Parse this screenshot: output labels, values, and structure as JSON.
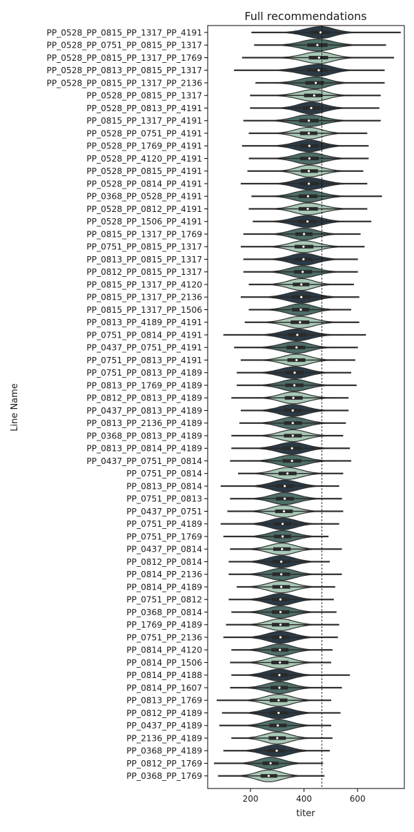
{
  "chart_data": {
    "type": "violin",
    "title": "Full recommendations",
    "xlabel": "titer",
    "ylabel": "Line Name",
    "xlim": [
      40,
      775
    ],
    "xticks": [
      200,
      400,
      600
    ],
    "reference_line": 467,
    "colors": [
      "#2b3a45",
      "#4e6e69",
      "#a8c8b6"
    ],
    "rows": [
      {
        "name": "PP_0528_PP_0815_PP_1317_PP_4191",
        "median": 462,
        "q1": 425,
        "q3": 495,
        "wmin": 330,
        "wmax": 600,
        "min": 205,
        "max": 760
      },
      {
        "name": "PP_0528_PP_0751_PP_0815_PP_1317",
        "median": 450,
        "q1": 412,
        "q3": 488,
        "wmin": 325,
        "wmax": 590,
        "min": 215,
        "max": 705
      },
      {
        "name": "PP_0528_PP_0815_PP_1317_PP_1769",
        "median": 456,
        "q1": 418,
        "q3": 490,
        "wmin": 285,
        "wmax": 630,
        "min": 170,
        "max": 735
      },
      {
        "name": "PP_0528_PP_0813_PP_0815_PP_1317",
        "median": 455,
        "q1": 412,
        "q3": 488,
        "wmin": 300,
        "wmax": 600,
        "min": 140,
        "max": 700
      },
      {
        "name": "PP_0528_PP_0815_PP_1317_PP_2136",
        "median": 444,
        "q1": 405,
        "q3": 475,
        "wmin": 285,
        "wmax": 595,
        "min": 220,
        "max": 700
      },
      {
        "name": "PP_0528_PP_0815_PP_1317",
        "median": 438,
        "q1": 400,
        "q3": 470,
        "wmin": 300,
        "wmax": 580,
        "min": 200,
        "max": 685
      },
      {
        "name": "PP_0528_PP_0813_PP_4191",
        "median": 427,
        "q1": 395,
        "q3": 460,
        "wmin": 300,
        "wmax": 560,
        "min": 200,
        "max": 680
      },
      {
        "name": "PP_0815_PP_1317_PP_4191",
        "median": 418,
        "q1": 382,
        "q3": 455,
        "wmin": 255,
        "wmax": 565,
        "min": 175,
        "max": 685
      },
      {
        "name": "PP_0528_PP_0751_PP_4191",
        "median": 418,
        "q1": 385,
        "q3": 450,
        "wmin": 290,
        "wmax": 545,
        "min": 195,
        "max": 635
      },
      {
        "name": "PP_0528_PP_1769_PP_4191",
        "median": 420,
        "q1": 385,
        "q3": 452,
        "wmin": 265,
        "wmax": 560,
        "min": 170,
        "max": 640
      },
      {
        "name": "PP_0528_PP_4120_PP_4191",
        "median": 420,
        "q1": 385,
        "q3": 455,
        "wmin": 285,
        "wmax": 565,
        "min": 195,
        "max": 640
      },
      {
        "name": "PP_0528_PP_0815_PP_4191",
        "median": 418,
        "q1": 388,
        "q3": 452,
        "wmin": 295,
        "wmax": 550,
        "min": 190,
        "max": 620
      },
      {
        "name": "PP_0528_PP_0814_PP_4191",
        "median": 418,
        "q1": 385,
        "q3": 455,
        "wmin": 240,
        "wmax": 560,
        "min": 165,
        "max": 635
      },
      {
        "name": "PP_0368_PP_0528_PP_4191",
        "median": 415,
        "q1": 380,
        "q3": 450,
        "wmin": 280,
        "wmax": 555,
        "min": 205,
        "max": 690
      },
      {
        "name": "PP_0528_PP_0812_PP_4191",
        "median": 414,
        "q1": 380,
        "q3": 452,
        "wmin": 260,
        "wmax": 555,
        "min": 195,
        "max": 635
      },
      {
        "name": "PP_0528_PP_1506_PP_4191",
        "median": 413,
        "q1": 378,
        "q3": 448,
        "wmin": 270,
        "wmax": 560,
        "min": 210,
        "max": 650
      },
      {
        "name": "PP_0815_PP_1317_PP_1769",
        "median": 400,
        "q1": 368,
        "q3": 432,
        "wmin": 255,
        "wmax": 540,
        "min": 175,
        "max": 610
      },
      {
        "name": "PP_0751_PP_0815_PP_1317",
        "median": 398,
        "q1": 365,
        "q3": 435,
        "wmin": 245,
        "wmax": 560,
        "min": 165,
        "max": 625
      },
      {
        "name": "PP_0813_PP_0815_PP_1317",
        "median": 398,
        "q1": 365,
        "q3": 432,
        "wmin": 255,
        "wmax": 545,
        "min": 175,
        "max": 600
      },
      {
        "name": "PP_0812_PP_0815_PP_1317",
        "median": 395,
        "q1": 362,
        "q3": 430,
        "wmin": 265,
        "wmax": 540,
        "min": 175,
        "max": 600
      },
      {
        "name": "PP_0815_PP_1317_PP_4120",
        "median": 390,
        "q1": 358,
        "q3": 420,
        "wmin": 265,
        "wmax": 520,
        "min": 195,
        "max": 585
      },
      {
        "name": "PP_0815_PP_1317_PP_2136",
        "median": 390,
        "q1": 355,
        "q3": 425,
        "wmin": 250,
        "wmax": 530,
        "min": 165,
        "max": 605
      },
      {
        "name": "PP_0815_PP_1317_PP_1506",
        "median": 388,
        "q1": 355,
        "q3": 420,
        "wmin": 250,
        "wmax": 520,
        "min": 195,
        "max": 575
      },
      {
        "name": "PP_0813_PP_4189_PP_4191",
        "median": 385,
        "q1": 350,
        "q3": 420,
        "wmin": 250,
        "wmax": 525,
        "min": 180,
        "max": 605
      },
      {
        "name": "PP_0751_PP_0814_PP_4191",
        "median": 375,
        "q1": 340,
        "q3": 410,
        "wmin": 205,
        "wmax": 550,
        "min": 100,
        "max": 630
      },
      {
        "name": "PP_0437_PP_0751_PP_4191",
        "median": 372,
        "q1": 335,
        "q3": 405,
        "wmin": 220,
        "wmax": 520,
        "min": 140,
        "max": 600
      },
      {
        "name": "PP_0751_PP_0813_PP_4191",
        "median": 372,
        "q1": 338,
        "q3": 405,
        "wmin": 240,
        "wmax": 520,
        "min": 165,
        "max": 590
      },
      {
        "name": "PP_0751_PP_0813_PP_4189",
        "median": 365,
        "q1": 330,
        "q3": 398,
        "wmin": 230,
        "wmax": 505,
        "min": 150,
        "max": 575
      },
      {
        "name": "PP_0813_PP_1769_PP_4189",
        "median": 364,
        "q1": 330,
        "q3": 398,
        "wmin": 225,
        "wmax": 510,
        "min": 150,
        "max": 595
      },
      {
        "name": "PP_0812_PP_0813_PP_4189",
        "median": 360,
        "q1": 328,
        "q3": 395,
        "wmin": 215,
        "wmax": 520,
        "min": 130,
        "max": 565
      },
      {
        "name": "PP_0437_PP_0813_PP_4189",
        "median": 358,
        "q1": 325,
        "q3": 392,
        "wmin": 230,
        "wmax": 505,
        "min": 165,
        "max": 565
      },
      {
        "name": "PP_0813_PP_2136_PP_4189",
        "median": 358,
        "q1": 325,
        "q3": 392,
        "wmin": 225,
        "wmax": 500,
        "min": 160,
        "max": 555
      },
      {
        "name": "PP_0368_PP_0813_PP_4189",
        "median": 358,
        "q1": 325,
        "q3": 392,
        "wmin": 215,
        "wmax": 490,
        "min": 130,
        "max": 545
      },
      {
        "name": "PP_0813_PP_0814_PP_4189",
        "median": 355,
        "q1": 320,
        "q3": 390,
        "wmin": 215,
        "wmax": 510,
        "min": 130,
        "max": 570
      },
      {
        "name": "PP_0437_PP_0751_PP_0814",
        "median": 355,
        "q1": 320,
        "q3": 390,
        "wmin": 200,
        "wmax": 505,
        "min": 125,
        "max": 575
      },
      {
        "name": "PP_0751_PP_0814",
        "median": 338,
        "q1": 305,
        "q3": 372,
        "wmin": 205,
        "wmax": 480,
        "min": 155,
        "max": 545
      },
      {
        "name": "PP_0813_PP_0814",
        "median": 328,
        "q1": 295,
        "q3": 362,
        "wmin": 185,
        "wmax": 470,
        "min": 90,
        "max": 530
      },
      {
        "name": "PP_0751_PP_0813",
        "median": 328,
        "q1": 295,
        "q3": 362,
        "wmin": 195,
        "wmax": 470,
        "min": 125,
        "max": 540
      },
      {
        "name": "PP_0437_PP_0751",
        "median": 325,
        "q1": 292,
        "q3": 358,
        "wmin": 185,
        "wmax": 470,
        "min": 115,
        "max": 545
      },
      {
        "name": "PP_0751_PP_4189",
        "median": 320,
        "q1": 288,
        "q3": 352,
        "wmin": 180,
        "wmax": 465,
        "min": 90,
        "max": 530
      },
      {
        "name": "PP_0751_PP_1769",
        "median": 320,
        "q1": 288,
        "q3": 352,
        "wmin": 185,
        "wmax": 455,
        "min": 100,
        "max": 490
      },
      {
        "name": "PP_0437_PP_0814",
        "median": 318,
        "q1": 285,
        "q3": 350,
        "wmin": 185,
        "wmax": 460,
        "min": 125,
        "max": 540
      },
      {
        "name": "PP_0812_PP_0814",
        "median": 315,
        "q1": 282,
        "q3": 348,
        "wmin": 185,
        "wmax": 455,
        "min": 120,
        "max": 495
      },
      {
        "name": "PP_0814_PP_2136",
        "median": 315,
        "q1": 282,
        "q3": 348,
        "wmin": 185,
        "wmax": 455,
        "min": 120,
        "max": 540
      },
      {
        "name": "PP_0814_PP_4189",
        "median": 315,
        "q1": 282,
        "q3": 348,
        "wmin": 190,
        "wmax": 455,
        "min": 150,
        "max": 515
      },
      {
        "name": "PP_0751_PP_0812",
        "median": 312,
        "q1": 280,
        "q3": 345,
        "wmin": 180,
        "wmax": 450,
        "min": 120,
        "max": 510
      },
      {
        "name": "PP_0368_PP_0814",
        "median": 312,
        "q1": 280,
        "q3": 345,
        "wmin": 185,
        "wmax": 450,
        "min": 130,
        "max": 520
      },
      {
        "name": "PP_1769_PP_4189",
        "median": 312,
        "q1": 280,
        "q3": 345,
        "wmin": 175,
        "wmax": 450,
        "min": 110,
        "max": 530
      },
      {
        "name": "PP_0751_PP_2136",
        "median": 312,
        "q1": 280,
        "q3": 345,
        "wmin": 175,
        "wmax": 450,
        "min": 100,
        "max": 525
      },
      {
        "name": "PP_0814_PP_4120",
        "median": 310,
        "q1": 278,
        "q3": 342,
        "wmin": 180,
        "wmax": 445,
        "min": 130,
        "max": 505
      },
      {
        "name": "PP_0814_PP_1506",
        "median": 310,
        "q1": 278,
        "q3": 342,
        "wmin": 180,
        "wmax": 445,
        "min": 125,
        "max": 500
      },
      {
        "name": "PP_0814_PP_4188",
        "median": 308,
        "q1": 275,
        "q3": 340,
        "wmin": 175,
        "wmax": 445,
        "min": 130,
        "max": 570
      },
      {
        "name": "PP_0814_PP_1607",
        "median": 308,
        "q1": 275,
        "q3": 340,
        "wmin": 175,
        "wmax": 445,
        "min": 125,
        "max": 540
      },
      {
        "name": "PP_0813_PP_1769",
        "median": 305,
        "q1": 272,
        "q3": 338,
        "wmin": 170,
        "wmax": 440,
        "min": 75,
        "max": 500
      },
      {
        "name": "PP_0812_PP_4189",
        "median": 305,
        "q1": 272,
        "q3": 338,
        "wmin": 170,
        "wmax": 440,
        "min": 95,
        "max": 535
      },
      {
        "name": "PP_0437_PP_4189",
        "median": 302,
        "q1": 270,
        "q3": 335,
        "wmin": 170,
        "wmax": 435,
        "min": 85,
        "max": 500
      },
      {
        "name": "PP_2136_PP_4189",
        "median": 300,
        "q1": 268,
        "q3": 332,
        "wmin": 170,
        "wmax": 435,
        "min": 130,
        "max": 505
      },
      {
        "name": "PP_0368_PP_4189",
        "median": 298,
        "q1": 265,
        "q3": 330,
        "wmin": 165,
        "wmax": 430,
        "min": 100,
        "max": 495
      },
      {
        "name": "PP_0812_PP_1769",
        "median": 275,
        "q1": 245,
        "q3": 305,
        "wmin": 150,
        "wmax": 410,
        "min": 65,
        "max": 470
      },
      {
        "name": "PP_0368_PP_1769",
        "median": 268,
        "q1": 238,
        "q3": 300,
        "wmin": 145,
        "wmax": 405,
        "min": 80,
        "max": 475
      }
    ]
  }
}
